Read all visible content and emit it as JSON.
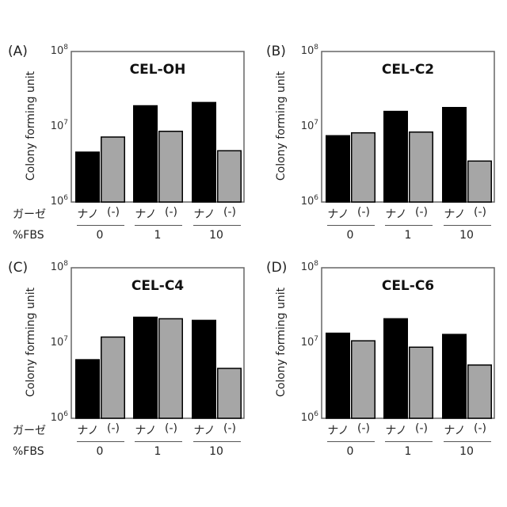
{
  "figure": {
    "row_label_gauze": "ガーゼ",
    "row_label_fbs": "%FBS",
    "sub_labels": [
      "ナノ",
      "(-)"
    ],
    "fbs_groups": [
      "0",
      "1",
      "10"
    ],
    "colors": {
      "nano": "#000000",
      "none": "#a6a6a6",
      "border": "#000000",
      "axis": "#666666"
    }
  },
  "chart_data": [
    {
      "type": "bar",
      "panel": "(A)",
      "title": "CEL-OH",
      "ylabel": "Colony forming unit",
      "yscale": "log",
      "ylim": [
        1000000,
        100000000
      ],
      "yticks": [
        {
          "base": "10",
          "exp": "6"
        },
        {
          "base": "10",
          "exp": "7"
        },
        {
          "base": "10",
          "exp": "8"
        }
      ],
      "categories": [
        "0",
        "1",
        "10"
      ],
      "xlabel_top": "ガーゼ",
      "xlabel_bottom": "%FBS",
      "series": [
        {
          "name": "ナノ",
          "color": "#000000",
          "values": [
            4600000,
            19000000,
            21000000
          ]
        },
        {
          "name": "(-)",
          "color": "#a6a6a6",
          "values": [
            7300000,
            8700000,
            4800000
          ]
        }
      ]
    },
    {
      "type": "bar",
      "panel": "(B)",
      "title": "CEL-C2",
      "ylabel": "Colony forming unit",
      "yscale": "log",
      "ylim": [
        1000000,
        100000000
      ],
      "yticks": [
        {
          "base": "10",
          "exp": "6"
        },
        {
          "base": "10",
          "exp": "7"
        },
        {
          "base": "10",
          "exp": "8"
        }
      ],
      "categories": [
        "0",
        "1",
        "10"
      ],
      "xlabel_top": "",
      "xlabel_bottom": "",
      "series": [
        {
          "name": "ナノ",
          "color": "#000000",
          "values": [
            7600000,
            16000000,
            18000000
          ]
        },
        {
          "name": "(-)",
          "color": "#a6a6a6",
          "values": [
            8300000,
            8500000,
            3500000
          ]
        }
      ]
    },
    {
      "type": "bar",
      "panel": "(C)",
      "title": "CEL-C4",
      "ylabel": "Colony forming unit",
      "yscale": "log",
      "ylim": [
        1000000,
        100000000
      ],
      "yticks": [
        {
          "base": "10",
          "exp": "6"
        },
        {
          "base": "10",
          "exp": "7"
        },
        {
          "base": "10",
          "exp": "8"
        }
      ],
      "categories": [
        "0",
        "1",
        "10"
      ],
      "xlabel_top": "ガーゼ",
      "xlabel_bottom": "%FBS",
      "series": [
        {
          "name": "ナノ",
          "color": "#000000",
          "values": [
            6000000,
            22000000,
            20000000
          ]
        },
        {
          "name": "(-)",
          "color": "#a6a6a6",
          "values": [
            12000000,
            21000000,
            4600000
          ]
        }
      ]
    },
    {
      "type": "bar",
      "panel": "(D)",
      "title": "CEL-C6",
      "ylabel": "Colony forming unit",
      "yscale": "log",
      "ylim": [
        1000000,
        100000000
      ],
      "yticks": [
        {
          "base": "10",
          "exp": "6"
        },
        {
          "base": "10",
          "exp": "7"
        },
        {
          "base": "10",
          "exp": "8"
        }
      ],
      "categories": [
        "0",
        "1",
        "10"
      ],
      "xlabel_top": "",
      "xlabel_bottom": "",
      "series": [
        {
          "name": "ナノ",
          "color": "#000000",
          "values": [
            13500000,
            21000000,
            13000000
          ]
        },
        {
          "name": "(-)",
          "color": "#a6a6a6",
          "values": [
            10700000,
            8800000,
            5100000
          ]
        }
      ]
    }
  ]
}
